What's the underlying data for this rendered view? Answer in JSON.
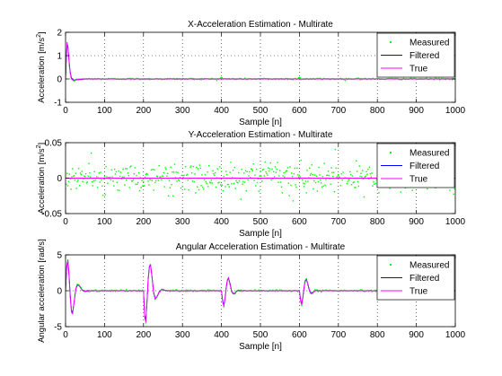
{
  "figure": {
    "background": "#ffffff",
    "colors": {
      "measured": "#00ff00",
      "filtered": "#0000ff",
      "true": "#ff00ff"
    }
  },
  "chart_data": [
    {
      "type": "line",
      "title": "X-Acceleration Estimation - Multirate",
      "xlabel": "Sample [n]",
      "ylabel_text": "Acceleration [m/s",
      "ylabel_sup": "2",
      "ylabel_close": "]",
      "xlim": [
        0,
        1000
      ],
      "ylim": [
        -1,
        2
      ],
      "xticks": [
        0,
        100,
        200,
        300,
        400,
        500,
        600,
        700,
        800,
        900,
        1000
      ],
      "yticks": [
        -1,
        0,
        1,
        2
      ],
      "grid": true,
      "legend_position": "top-right",
      "series": [
        {
          "name": "Measured",
          "style": "points",
          "noise": 0.015,
          "spikes": [
            [
              400,
              0.05
            ],
            [
              600,
              0.05
            ],
            [
              750,
              0.03
            ]
          ]
        },
        {
          "name": "Filtered",
          "style": "line",
          "x": [
            0,
            2,
            4,
            6,
            8,
            10,
            12,
            15,
            20,
            25,
            30,
            40,
            50,
            60,
            1000
          ],
          "y": [
            0,
            0.9,
            1.5,
            1.4,
            1.0,
            0.6,
            0.3,
            0.05,
            -0.05,
            -0.04,
            -0.03,
            -0.02,
            0,
            0,
            0
          ]
        },
        {
          "name": "True",
          "style": "line",
          "x": [
            0,
            2,
            4,
            6,
            8,
            10,
            12,
            15,
            20,
            25,
            30,
            40,
            50,
            60,
            1000
          ],
          "y": [
            0,
            1.0,
            1.55,
            1.4,
            0.95,
            0.55,
            0.25,
            0.0,
            -0.06,
            -0.05,
            -0.03,
            -0.01,
            0,
            0,
            0
          ]
        }
      ]
    },
    {
      "type": "line",
      "title": "Y-Acceleration Estimation - Multirate",
      "xlabel": "Sample [n]",
      "ylabel_text": "Acceleration [m/s",
      "ylabel_sup": "2",
      "ylabel_close": "]",
      "xlim": [
        0,
        1000
      ],
      "ylim": [
        -0.05,
        0.05
      ],
      "xticks": [
        0,
        100,
        200,
        300,
        400,
        500,
        600,
        700,
        800,
        900,
        1000
      ],
      "yticks": [
        -0.05,
        0,
        0.05
      ],
      "grid": true,
      "legend_position": "top-right",
      "series": [
        {
          "name": "Measured",
          "style": "points",
          "noise": 0.01,
          "spikes": []
        },
        {
          "name": "Filtered",
          "style": "line",
          "x": [
            0,
            1000
          ],
          "y": [
            0,
            0
          ]
        },
        {
          "name": "True",
          "style": "line",
          "x": [
            0,
            1000
          ],
          "y": [
            0,
            0
          ]
        }
      ]
    },
    {
      "type": "line",
      "title": "Angular Acceleration Estimation - Multirate",
      "xlabel": "Sample [n]",
      "ylabel_text": "Angular acceleration [rad/s]",
      "ylabel_sup": "",
      "ylabel_close": "",
      "xlim": [
        0,
        1000
      ],
      "ylim": [
        -5,
        5
      ],
      "xticks": [
        0,
        100,
        200,
        300,
        400,
        500,
        600,
        700,
        800,
        900,
        1000
      ],
      "yticks": [
        -5,
        0,
        5
      ],
      "grid": true,
      "legend_position": "top-right",
      "series": [
        {
          "name": "Measured",
          "style": "points",
          "noise": 0.06,
          "spikes": []
        },
        {
          "name": "Filtered",
          "style": "line",
          "x": [
            0,
            3,
            6,
            9,
            12,
            15,
            18,
            22,
            26,
            30,
            35,
            40,
            45,
            50,
            55,
            60,
            200,
            203,
            206,
            209,
            212,
            215,
            218,
            222,
            226,
            230,
            235,
            240,
            245,
            250,
            255,
            260,
            400,
            403,
            406,
            409,
            412,
            415,
            418,
            422,
            426,
            430,
            435,
            440,
            445,
            450,
            600,
            603,
            606,
            609,
            612,
            615,
            618,
            622,
            626,
            630,
            635,
            640,
            645,
            650,
            1000
          ],
          "y": [
            0,
            3.2,
            4.2,
            2.2,
            -0.6,
            -2.7,
            -3.1,
            -1.6,
            0.1,
            0.8,
            0.7,
            0.3,
            0.0,
            -0.1,
            -0.05,
            0,
            0,
            -3.4,
            -4.2,
            -1.6,
            1.5,
            3.3,
            3.6,
            1.9,
            -0.2,
            -1.1,
            -0.8,
            -0.2,
            0.1,
            0.15,
            0.05,
            0,
            0,
            -1.3,
            -2.1,
            -1.2,
            0.3,
            1.4,
            1.8,
            1.0,
            0.0,
            -0.4,
            -0.3,
            0.0,
            0.05,
            0,
            0,
            -1.2,
            -1.9,
            -0.9,
            0.4,
            1.4,
            1.6,
            0.9,
            0.0,
            -0.35,
            -0.25,
            0.0,
            0.05,
            0,
            0
          ]
        },
        {
          "name": "True",
          "style": "line",
          "x": [
            0,
            3,
            6,
            9,
            12,
            15,
            18,
            22,
            26,
            30,
            35,
            40,
            45,
            50,
            55,
            60,
            200,
            203,
            206,
            209,
            212,
            215,
            218,
            222,
            226,
            230,
            235,
            240,
            245,
            250,
            255,
            260,
            400,
            403,
            406,
            409,
            412,
            415,
            418,
            422,
            426,
            430,
            435,
            440,
            445,
            450,
            600,
            603,
            606,
            609,
            612,
            615,
            618,
            622,
            626,
            630,
            635,
            640,
            645,
            650,
            1000
          ],
          "y": [
            0,
            3.5,
            4.3,
            2.0,
            -0.9,
            -2.9,
            -3.2,
            -1.5,
            0.2,
            0.85,
            0.7,
            0.3,
            0.0,
            -0.1,
            -0.05,
            0,
            0,
            -3.7,
            -4.4,
            -1.4,
            1.7,
            3.4,
            3.6,
            1.8,
            -0.3,
            -1.15,
            -0.8,
            -0.2,
            0.1,
            0.15,
            0.05,
            0,
            0,
            -1.5,
            -2.2,
            -1.1,
            0.4,
            1.5,
            1.8,
            0.9,
            -0.05,
            -0.45,
            -0.3,
            0.0,
            0.05,
            0,
            0,
            -1.4,
            -2.0,
            -0.8,
            0.5,
            1.5,
            1.6,
            0.8,
            -0.05,
            -0.4,
            -0.25,
            0.0,
            0.05,
            0,
            0
          ]
        }
      ]
    }
  ]
}
